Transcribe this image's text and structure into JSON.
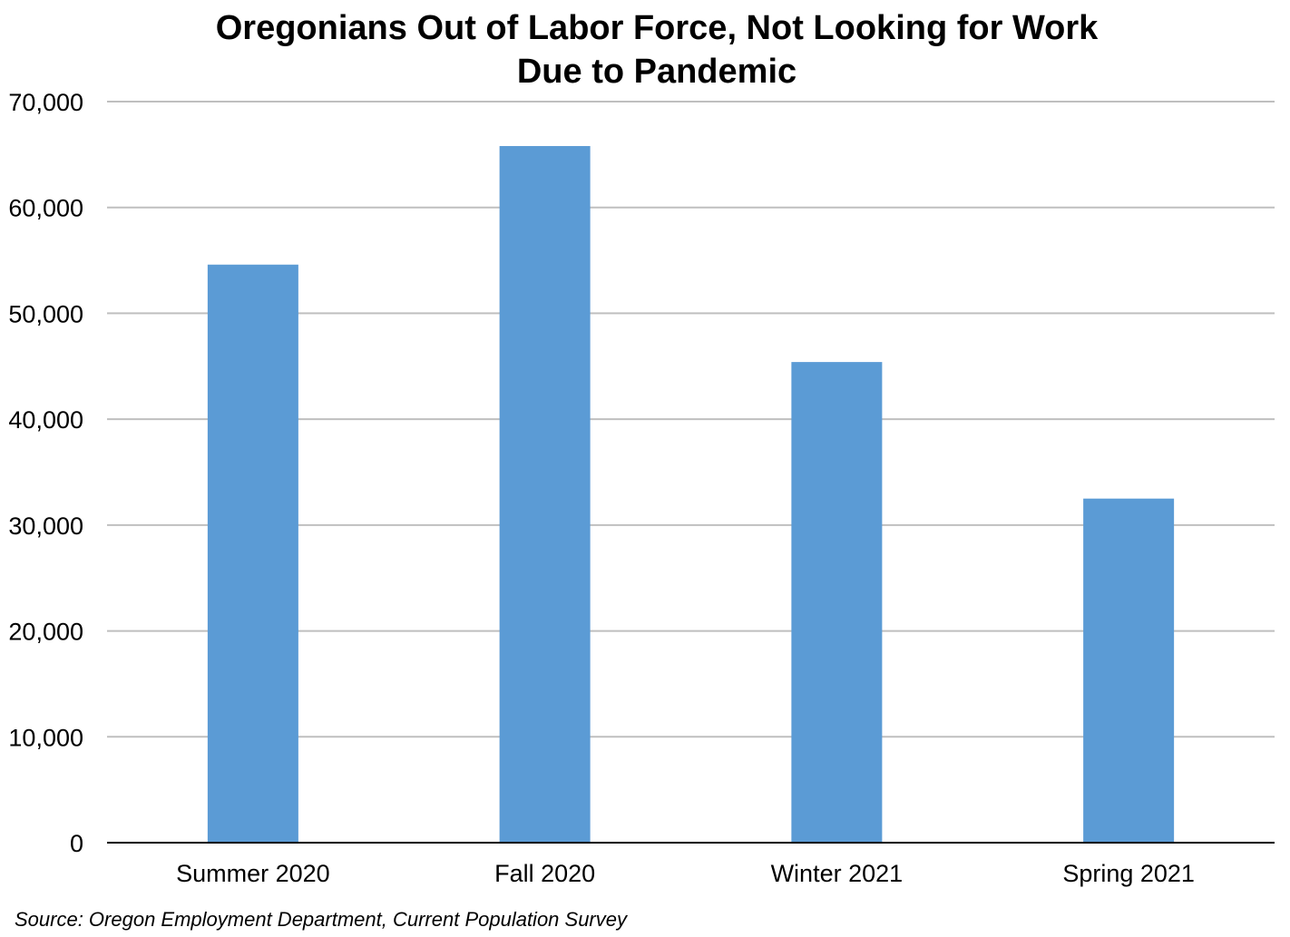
{
  "chart_data": {
    "type": "bar",
    "title": [
      "Oregonians Out of Labor Force, Not Looking for Work",
      "Due to Pandemic"
    ],
    "categories": [
      "Summer 2020",
      "Fall 2020",
      "Winter 2021",
      "Spring 2021"
    ],
    "values": [
      54600,
      65800,
      45400,
      32500
    ],
    "ylim": [
      0,
      70000
    ],
    "yticks": [
      0,
      10000,
      20000,
      30000,
      40000,
      50000,
      60000,
      70000
    ],
    "ytick_labels": [
      "0",
      "10,000",
      "20,000",
      "30,000",
      "40,000",
      "50,000",
      "60,000",
      "70,000"
    ],
    "grid": true,
    "bar_color": "#5b9bd5",
    "gridline_color": "#bfbfbf",
    "source": "Source: Oregon Employment Department, Current Population Survey"
  }
}
